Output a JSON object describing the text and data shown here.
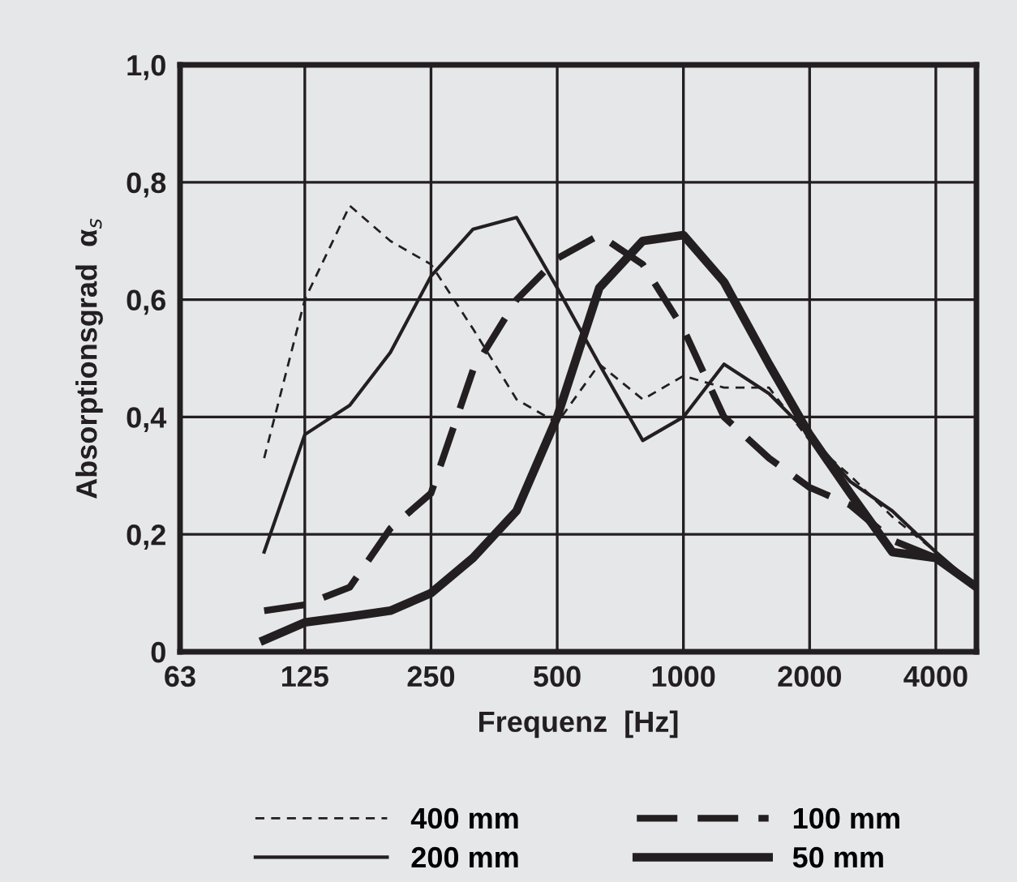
{
  "chart_data": {
    "type": "line",
    "xlabel": "Frequenz  [Hz]",
    "ylabel": "Absorptionsgrad  α$_{s}$",
    "x": [
      100,
      125,
      160,
      200,
      250,
      315,
      400,
      500,
      630,
      800,
      1000,
      1250,
      1600,
      2000,
      2500,
      3150,
      4000,
      5000
    ],
    "log": "x",
    "xlim": [
      63,
      5000
    ],
    "xticks": [
      63,
      125,
      250,
      500,
      1000,
      2000,
      4000
    ],
    "ylim": [
      0,
      1
    ],
    "yticks": [
      0,
      {
        "value": 0.2,
        "label": "0,2"
      },
      {
        "value": 0.4,
        "label": "0,4"
      },
      {
        "value": 0.6,
        "label": "0,6"
      },
      {
        "value": 0.8,
        "label": "0,8"
      },
      {
        "value": 1.0,
        "label": "1,0"
      }
    ],
    "grid": true,
    "legend": "bottom",
    "marker": "none",
    "series": [
      {
        "name": "400 mm",
        "color": "#231f20",
        "line_style": "dashed",
        "values": [
          0.33,
          0.6,
          0.76,
          0.7,
          0.66,
          0.55,
          0.43,
          0.39,
          0.49,
          0.43,
          0.47,
          0.45,
          0.45,
          0.36,
          0.3,
          0.23,
          0.17,
          0.11
        ]
      },
      {
        "name": "200 mm",
        "color": "#231f20",
        "line_style": "solid",
        "values": [
          0.17,
          0.37,
          0.42,
          0.51,
          0.64,
          0.72,
          0.74,
          0.62,
          0.49,
          0.36,
          0.4,
          0.49,
          0.44,
          0.37,
          0.29,
          0.24,
          0.17,
          0.11
        ]
      },
      {
        "name": "100 mm",
        "color": "#231f20",
        "line_style": "dashed",
        "values": [
          0.07,
          0.08,
          0.11,
          0.21,
          0.27,
          0.48,
          0.6,
          0.67,
          0.71,
          0.66,
          0.55,
          0.4,
          0.33,
          0.28,
          0.25,
          0.19,
          0.16,
          0.11
        ]
      },
      {
        "name": "50 mm",
        "color": "#231f20",
        "line_style": "solid",
        "values": [
          0.02,
          0.05,
          0.06,
          0.07,
          0.1,
          0.16,
          0.24,
          0.4,
          0.62,
          0.7,
          0.71,
          0.63,
          0.49,
          0.37,
          0.27,
          0.17,
          0.16,
          0.11
        ]
      }
    ]
  }
}
